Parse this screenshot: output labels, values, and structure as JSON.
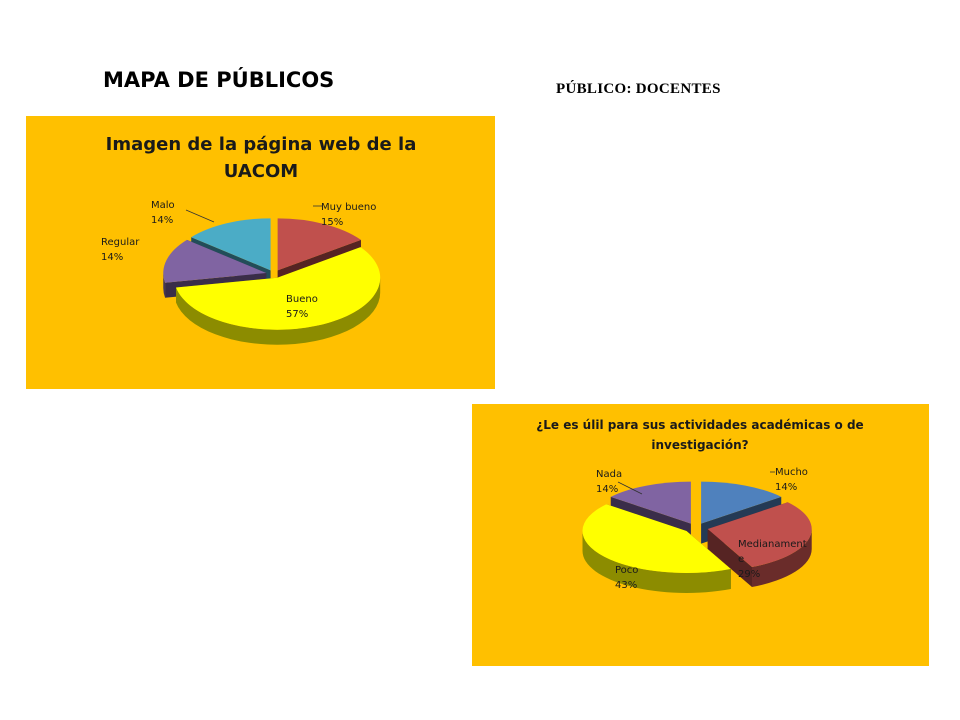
{
  "page": {
    "title": "MAPA DE PÚBLICOS",
    "public_label": "PÚBLICO: DOCENTES"
  },
  "chart_data": [
    {
      "type": "pie",
      "style": "3d-exploded",
      "title_lines": [
        "Imagen de la página web de la",
        "UACOM"
      ],
      "background": "#FFC000",
      "slices": [
        {
          "label": [
            "Muy bueno"
          ],
          "value": 15,
          "pct": "15%",
          "color": "#C0504D"
        },
        {
          "label": [
            "Bueno"
          ],
          "value": 57,
          "pct": "57%",
          "color": "#FFFF00"
        },
        {
          "label": [
            "Regular"
          ],
          "value": 14,
          "pct": "14%",
          "color": "#8064A2"
        },
        {
          "label": [
            "Malo"
          ],
          "value": 14,
          "pct": "14%",
          "color": "#4BACC6"
        }
      ]
    },
    {
      "type": "pie",
      "style": "3d-exploded",
      "title_lines": [
        "¿Le es úlil para sus actividades académicas o de",
        "investigación?"
      ],
      "background": "#FFC000",
      "slices": [
        {
          "label": [
            "Mucho"
          ],
          "value": 14,
          "pct": "14%",
          "color": "#4F81BD"
        },
        {
          "label": [
            "Medianament",
            "e"
          ],
          "value": 29,
          "pct": "29%",
          "color": "#C0504D"
        },
        {
          "label": [
            "Poco"
          ],
          "value": 43,
          "pct": "43%",
          "color": "#FFFF00"
        },
        {
          "label": [
            "Nada"
          ],
          "value": 14,
          "pct": "14%",
          "color": "#8064A2"
        }
      ]
    }
  ]
}
